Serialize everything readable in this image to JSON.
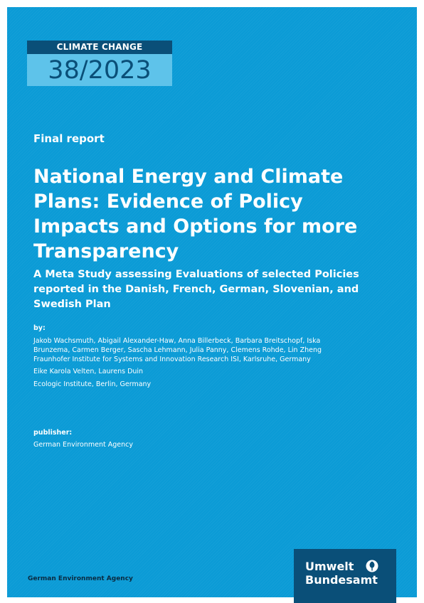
{
  "series": {
    "label": "CLIMATE CHANGE",
    "number": "38/2023"
  },
  "doc_type": "Final report",
  "title": "National Energy and Climate Plans: Evidence of Policy Impacts and Options for more Transparency",
  "subtitle": "A Meta Study assessing Evaluations of selected Policies reported in the Danish, French, German, Slovenian, and Swedish Plan",
  "by_label": "by:",
  "authors": [
    {
      "names": "Jakob Wachsmuth, Abigail Alexander-Haw, Anna Billerbeck, Barbara Breitschopf, Iska Brunzema, Carmen Berger, Sascha Lehmann, Julia Panny, Clemens Rohde, Lin Zheng",
      "institution": "Fraunhofer Institute for Systems and Innovation Research ISI, Karlsruhe, Germany"
    },
    {
      "names": "Eike Karola Velten, Laurens Duin",
      "institution": "Ecologic Institute, Berlin, Germany"
    }
  ],
  "publisher_label": "publisher:",
  "publisher": "German Environment Agency",
  "footer_agency": "German Environment Agency",
  "logo": {
    "line1": "Umwelt",
    "line2": "Bundesamt",
    "icon": "tree-emblem-icon"
  },
  "colors": {
    "cover": "#0b9bd6",
    "dark_blue": "#0a4f78",
    "light_blue": "#5ec3ea"
  }
}
